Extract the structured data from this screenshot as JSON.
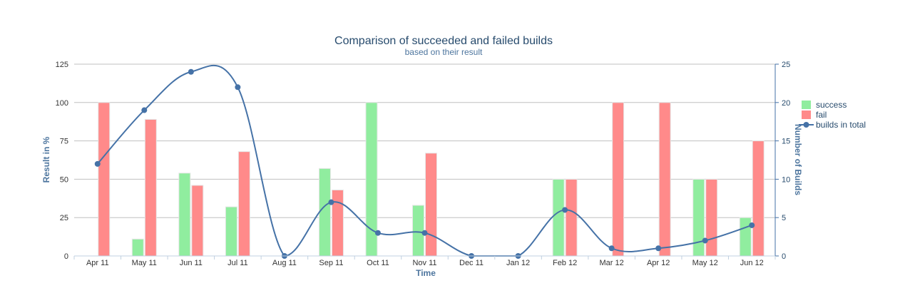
{
  "chart_data": {
    "type": "bar",
    "title": "Comparison of succeeded and failed builds",
    "subtitle": "based on their result",
    "xlabel": "Time",
    "ylabel": "Result in %",
    "y2label": "Number of Builds",
    "categories": [
      "Apr 11",
      "May 11",
      "Jun 11",
      "Jul 11",
      "Aug 11",
      "Sep 11",
      "Oct 11",
      "Nov 11",
      "Dec 11",
      "Jan 12",
      "Feb 12",
      "Mar 12",
      "Apr 12",
      "May 12",
      "Jun 12"
    ],
    "ylim": [
      0,
      125
    ],
    "yticks": [
      0,
      25,
      50,
      75,
      100,
      125
    ],
    "y2lim": [
      0,
      25
    ],
    "y2ticks": [
      0,
      5,
      10,
      15,
      20,
      25
    ],
    "grid": true,
    "legend_position": "right",
    "series": [
      {
        "name": "success",
        "type": "bar",
        "axis": "left",
        "color": "#90ed9f",
        "values": [
          0,
          11,
          54,
          32,
          0,
          57,
          100,
          33,
          0,
          0,
          50,
          0,
          0,
          50,
          25
        ]
      },
      {
        "name": "fail",
        "type": "bar",
        "axis": "left",
        "color": "#ff8a8a",
        "values": [
          100,
          89,
          46,
          68,
          0,
          43,
          0,
          67,
          0,
          0,
          50,
          100,
          100,
          50,
          75
        ]
      },
      {
        "name": "builds in total",
        "type": "line",
        "axis": "right",
        "color": "#4572a7",
        "values": [
          12,
          19,
          24,
          22,
          0,
          7,
          3,
          3,
          0,
          0,
          6,
          1,
          1,
          2,
          4
        ]
      }
    ]
  }
}
